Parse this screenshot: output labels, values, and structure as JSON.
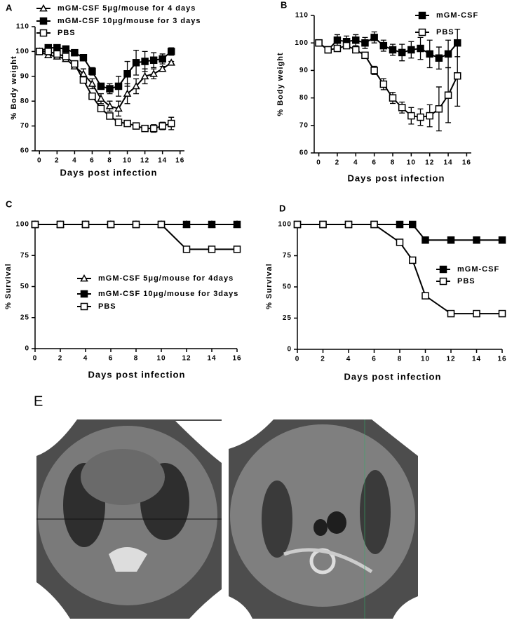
{
  "chart_data": [
    {
      "type": "line",
      "title": "A",
      "x_label": "Days post infection",
      "y_label": "% Body weight",
      "x": [
        0,
        1,
        2,
        3,
        4,
        5,
        6,
        7,
        8,
        9,
        10,
        11,
        12,
        13,
        14,
        15
      ],
      "xlim": [
        -0.5,
        16.5
      ],
      "xticks": [
        0,
        2,
        4,
        6,
        8,
        10,
        12,
        14,
        16
      ],
      "ylim": [
        60,
        110
      ],
      "yticks": [
        60,
        70,
        80,
        90,
        100,
        110
      ],
      "series": [
        {
          "name": "mGM-CSF 5μg/mouse for 4 days",
          "marker": "triangle-open",
          "color": "#000",
          "values": [
            100,
            98.5,
            98,
            97,
            94,
            91,
            87,
            81,
            78,
            77,
            83,
            86,
            90,
            91,
            93,
            95.5
          ],
          "errors": [
            0.5,
            1,
            1,
            1,
            1,
            2,
            2,
            2,
            2,
            3,
            4,
            3,
            3,
            2,
            1,
            0.5
          ]
        },
        {
          "name": "mGM-CSF 10μg/mouse for 3 days",
          "marker": "square",
          "color": "#000",
          "values": [
            100,
            101.5,
            101.5,
            101,
            99.5,
            97.5,
            92,
            86,
            85,
            86,
            91,
            95.5,
            96,
            96.5,
            97,
            100
          ],
          "errors": [
            0.5,
            1,
            1,
            1,
            0.5,
            1,
            1.5,
            1,
            2,
            4,
            5,
            5,
            4,
            3,
            2,
            1.5
          ]
        },
        {
          "name": "PBS",
          "marker": "square-open",
          "color": "#000",
          "values": [
            100,
            100,
            99,
            98,
            95,
            88.5,
            82,
            77,
            74,
            71.5,
            71,
            70,
            69,
            69,
            70,
            71
          ],
          "errors": [
            0.5,
            0.5,
            0.5,
            0.5,
            1,
            1,
            1,
            1,
            1,
            1,
            0.5,
            0.5,
            1,
            1.5,
            1.5,
            2.5
          ]
        }
      ]
    },
    {
      "type": "line",
      "title": "B",
      "x_label": "Days post infection",
      "y_label": "% Body weight",
      "x": [
        0,
        1,
        2,
        3,
        4,
        5,
        6,
        7,
        8,
        9,
        10,
        11,
        12,
        13,
        14,
        15
      ],
      "xlim": [
        -0.5,
        16.5
      ],
      "xticks": [
        0,
        2,
        4,
        6,
        8,
        10,
        12,
        14,
        16
      ],
      "ylim": [
        60,
        110
      ],
      "yticks": [
        60,
        70,
        80,
        90,
        100,
        110
      ],
      "series": [
        {
          "name": "mGM-CSF",
          "marker": "square",
          "color": "#000",
          "values": [
            100,
            97.5,
            101,
            100.5,
            101,
            100,
            102,
            99,
            97.5,
            96.5,
            97.5,
            98,
            96,
            94.5,
            96,
            100
          ],
          "errors": [
            1,
            1,
            2,
            2,
            2,
            2,
            2,
            2,
            2,
            3,
            3,
            4,
            5,
            4,
            5,
            5
          ]
        },
        {
          "name": "PBS",
          "marker": "square-open",
          "color": "#000",
          "values": [
            100,
            97.5,
            98,
            99,
            97.5,
            95.5,
            90,
            85,
            80,
            76.5,
            73.5,
            73,
            73.5,
            76,
            81,
            88
          ],
          "errors": [
            1,
            1,
            1,
            1,
            1,
            1,
            1.5,
            2,
            2,
            2,
            3,
            3,
            4,
            8,
            10,
            11
          ]
        }
      ]
    },
    {
      "type": "line",
      "title": "C",
      "x_label": "Days post infection",
      "y_label": "% Survival",
      "x": [
        0,
        2,
        4,
        6,
        8,
        10,
        12,
        14,
        16
      ],
      "xlim": [
        0,
        16
      ],
      "xticks": [
        0,
        2,
        4,
        6,
        8,
        10,
        12,
        14,
        16
      ],
      "ylim": [
        0,
        100
      ],
      "yticks": [
        0,
        25,
        50,
        75,
        100
      ],
      "series": [
        {
          "name": "mGM-CSF 5μg/mouse for 4days",
          "marker": "triangle-open",
          "color": "#000",
          "values": [
            100,
            100,
            100,
            100,
            100,
            100,
            100,
            100,
            100
          ]
        },
        {
          "name": "mGM-CSF 10μg/mouse for 3days",
          "marker": "square",
          "color": "#000",
          "values": [
            100,
            100,
            100,
            100,
            100,
            100,
            100,
            100,
            100
          ]
        },
        {
          "name": "PBS",
          "marker": "square-open",
          "color": "#000",
          "values": [
            100,
            100,
            100,
            100,
            100,
            100,
            80,
            80,
            80
          ]
        }
      ]
    },
    {
      "type": "line",
      "title": "D",
      "x_label": "Days post infection",
      "y_label": "% Survival",
      "x": [
        0,
        2,
        4,
        6,
        8,
        9,
        10,
        12,
        14,
        16
      ],
      "xlim": [
        0,
        16
      ],
      "xticks": [
        0,
        2,
        4,
        6,
        8,
        10,
        12,
        14,
        16
      ],
      "ylim": [
        0,
        100
      ],
      "yticks": [
        0,
        25,
        50,
        75,
        100
      ],
      "series": [
        {
          "name": "mGM-CSF",
          "marker": "square",
          "color": "#000",
          "values": [
            100,
            100,
            100,
            100,
            100,
            100,
            87.5,
            87.5,
            87.5,
            87.5
          ]
        },
        {
          "name": "PBS",
          "marker": "square-open",
          "color": "#000",
          "values": [
            100,
            100,
            100,
            100,
            85.7,
            71.4,
            42.9,
            28.6,
            28.6,
            28.6
          ]
        }
      ]
    },
    {
      "type": "image",
      "title": "E"
    }
  ]
}
